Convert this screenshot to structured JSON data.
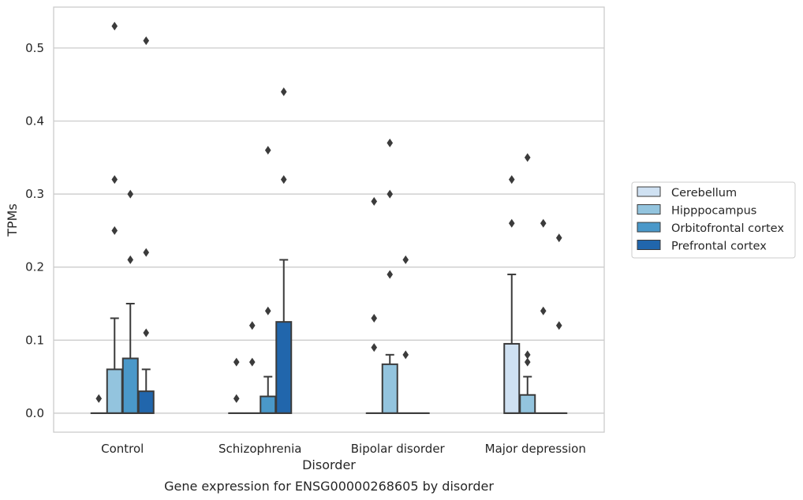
{
  "chart_data": {
    "type": "box",
    "title": "",
    "caption": "Gene expression for ENSG00000268605 by disorder",
    "xlabel": "Disorder",
    "ylabel": "TPMs",
    "ylim": [
      -0.026,
      0.556
    ],
    "yticks": [
      0.0,
      0.1,
      0.2,
      0.3,
      0.4,
      0.5
    ],
    "ytick_labels": [
      "0.0",
      "0.1",
      "0.2",
      "0.3",
      "0.4",
      "0.5"
    ],
    "grid": "horizontal",
    "legend_position": "right",
    "categories": [
      "Control",
      "Schizophrenia",
      "Bipolar disorder",
      "Major depression"
    ],
    "series": [
      {
        "name": "Cerebellum",
        "color": "#cfe1f2",
        "boxes": [
          {
            "q1": 0,
            "median": 0,
            "q3": 0,
            "whislo": 0,
            "whishi": 0,
            "fliers": [
              0.02
            ]
          },
          {
            "q1": 0,
            "median": 0,
            "q3": 0,
            "whislo": 0,
            "whishi": 0,
            "fliers": [
              0.02,
              0.07
            ]
          },
          {
            "q1": 0,
            "median": 0,
            "q3": 0,
            "whislo": 0,
            "whishi": 0,
            "fliers": [
              0.09,
              0.13,
              0.29
            ]
          },
          {
            "q1": 0,
            "median": 0,
            "q3": 0.095,
            "whislo": 0,
            "whishi": 0.19,
            "fliers": [
              0.26,
              0.32
            ]
          }
        ]
      },
      {
        "name": "Hipppocampus",
        "color": "#93c4de",
        "boxes": [
          {
            "q1": 0,
            "median": 0,
            "q3": 0.06,
            "whislo": 0,
            "whishi": 0.13,
            "fliers": [
              0.25,
              0.32
            ]
          },
          {
            "q1": 0,
            "median": 0,
            "q3": 0,
            "whislo": 0,
            "whishi": 0,
            "fliers": [
              0.07,
              0.12
            ]
          },
          {
            "q1": 0,
            "median": 0,
            "q3": 0.067,
            "whislo": 0,
            "whishi": 0.08,
            "fliers": [
              0.19,
              0.3,
              0.37
            ]
          },
          {
            "q1": 0,
            "median": 0,
            "q3": 0.025,
            "whislo": 0,
            "whishi": 0.05,
            "fliers": [
              0.07,
              0.08,
              0.35
            ]
          }
        ]
      },
      {
        "name": "Orbitofrontal cortex",
        "color": "#4a98c9",
        "boxes": [
          {
            "q1": 0,
            "median": 0,
            "q3": 0.075,
            "whislo": 0,
            "whishi": 0.15,
            "fliers": [
              0.21,
              0.3
            ]
          },
          {
            "q1": 0,
            "median": 0,
            "q3": 0.023,
            "whislo": 0,
            "whishi": 0.05,
            "fliers": [
              0.14,
              0.36
            ]
          },
          {
            "q1": 0,
            "median": 0,
            "q3": 0,
            "whislo": 0,
            "whishi": 0,
            "fliers": [
              0.08,
              0.21
            ]
          },
          {
            "q1": 0,
            "median": 0,
            "q3": 0,
            "whislo": 0,
            "whishi": 0,
            "fliers": [
              0.14,
              0.26
            ]
          }
        ]
      },
      {
        "name": "Prefrontal cortex",
        "color": "#2166ac",
        "boxes": [
          {
            "q1": 0,
            "median": 0,
            "q3": 0.03,
            "whislo": 0,
            "whishi": 0.06,
            "fliers": [
              0.11,
              0.22,
              0.51
            ]
          },
          {
            "q1": 0,
            "median": 0,
            "q3": 0.125,
            "whislo": 0,
            "whishi": 0.21,
            "fliers": [
              0.32,
              0.44
            ]
          },
          {
            "q1": 0,
            "median": 0,
            "q3": 0,
            "whislo": 0,
            "whishi": 0,
            "fliers": []
          },
          {
            "q1": 0,
            "median": 0,
            "q3": 0,
            "whislo": 0,
            "whishi": 0,
            "fliers": [
              0.12,
              0.24
            ]
          }
        ]
      }
    ],
    "extra_fliers": [
      {
        "category": 0,
        "series": 1,
        "value": 0.53
      }
    ]
  }
}
